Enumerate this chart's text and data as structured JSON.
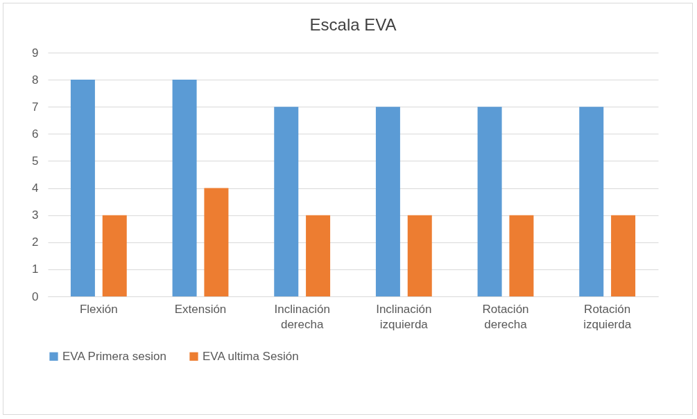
{
  "chart_data": {
    "type": "bar",
    "title": "Escala EVA",
    "categories": [
      "Flexión",
      "Extensión",
      "Inclinación derecha",
      "Inclinación izquierda",
      "Rotación derecha",
      "Rotación izquierda"
    ],
    "series": [
      {
        "name": "EVA Primera sesion",
        "color": "#5b9bd5",
        "values": [
          8,
          8,
          7,
          7,
          7,
          7
        ]
      },
      {
        "name": "EVA ultima Sesión",
        "color": "#ed7d31",
        "values": [
          3,
          4,
          3,
          3,
          3,
          3
        ]
      }
    ],
    "ylim": [
      0,
      9
    ],
    "yticks": [
      0,
      1,
      2,
      3,
      4,
      5,
      6,
      7,
      8,
      9
    ],
    "grid": "y",
    "legend": "bottom"
  }
}
